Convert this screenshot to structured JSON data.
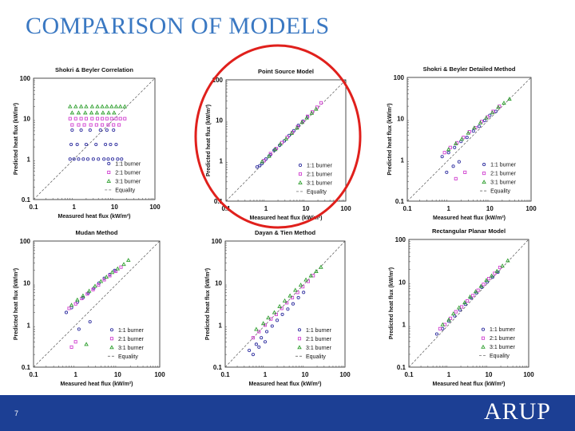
{
  "slide": {
    "title": "COMPARISON OF MODELS",
    "page_number": "7",
    "brand": "ARUP",
    "colors": {
      "title": "#3a78c2",
      "footer": "#1c3f94",
      "highlight_ring": "#e0201c",
      "series_1": "#3030a0",
      "series_2": "#d040d0",
      "series_3": "#30a030"
    }
  },
  "chart_data": [
    {
      "type": "scatter",
      "title": "Shokri & Beyler Correlation",
      "xlabel": "Measured heat flux (kW/m²)",
      "ylabel": "Predicted heat flux (kW/m²)",
      "xlim": [
        0.1,
        100
      ],
      "ylim": [
        0.1,
        100
      ],
      "log_scale": true,
      "x_ticks": [
        "0.1",
        "1",
        "10",
        "100"
      ],
      "y_ticks": [
        "0.1",
        "1",
        "10",
        "100"
      ],
      "highlighted": false,
      "legend": [
        "1:1 burner",
        "2:1 burner",
        "3:1 burner",
        "Equality"
      ],
      "legend_position": "bottom-right",
      "series": [
        {
          "name": "1:1 burner",
          "x": [
            0.8,
            1.0,
            1.3,
            1.7,
            2.2,
            3.0,
            4.0,
            5.5,
            7.0,
            9.0,
            12.0,
            15.0,
            0.9,
            1.5,
            2.5,
            4.5,
            6.5,
            9.5,
            0.85,
            1.2,
            2.0,
            3.5,
            6.0,
            8.0,
            11.0
          ],
          "y": [
            1.0,
            1.0,
            1.0,
            1.0,
            1.0,
            1.0,
            1.0,
            1.0,
            1.0,
            1.0,
            1.0,
            1.0,
            5.2,
            5.2,
            5.2,
            5.2,
            5.2,
            5.2,
            2.3,
            2.3,
            2.3,
            2.3,
            2.3,
            2.3,
            2.3
          ]
        },
        {
          "name": "2:1 burner",
          "x": [
            0.8,
            1.1,
            1.5,
            2.0,
            2.8,
            3.8,
            5.0,
            6.5,
            8.5,
            11.0,
            14.0,
            18.0,
            0.9,
            1.3,
            1.8,
            2.6,
            3.6,
            5.0,
            7.0,
            9.5,
            13.0
          ],
          "y": [
            10.0,
            10.0,
            10.0,
            10.0,
            10.0,
            10.0,
            10.0,
            10.0,
            10.0,
            10.0,
            10.0,
            10.0,
            7.0,
            7.0,
            7.0,
            7.0,
            7.0,
            7.0,
            7.0,
            7.0,
            7.0
          ]
        },
        {
          "name": "3:1 burner",
          "x": [
            0.8,
            1.1,
            1.5,
            2.0,
            2.8,
            3.8,
            5.0,
            6.5,
            8.5,
            11.0,
            14.0,
            18.0,
            0.9,
            1.3,
            1.9,
            2.7,
            3.7,
            5.2,
            7.2,
            9.8
          ],
          "y": [
            20.0,
            20.0,
            20.0,
            20.0,
            20.0,
            20.0,
            20.0,
            20.0,
            20.0,
            20.0,
            20.0,
            20.0,
            14.0,
            14.0,
            14.0,
            14.0,
            14.0,
            14.0,
            14.0,
            14.0
          ]
        }
      ]
    },
    {
      "type": "scatter",
      "title": "Point Source Model",
      "xlabel": "Measured heat flux (kW/m²)",
      "ylabel": "Predicted heat flux (kW/m²)",
      "xlim": [
        0.1,
        100
      ],
      "ylim": [
        0.1,
        100
      ],
      "log_scale": true,
      "x_ticks": [
        "0.1",
        "1",
        "10",
        "100"
      ],
      "y_ticks": [
        "0.1",
        "1",
        "10",
        "100"
      ],
      "highlighted": true,
      "legend": [
        "1:1 burner",
        "2:1 burner",
        "3:1 burner",
        "Equality"
      ],
      "legend_position": "bottom-right",
      "series": [
        {
          "name": "1:1 burner",
          "x": [
            0.6,
            0.8,
            1.0,
            1.3,
            1.7,
            2.2,
            2.9,
            3.8,
            5.0,
            6.5,
            8.5,
            11.0,
            0.7,
            0.9,
            1.2,
            1.6
          ],
          "y": [
            0.7,
            0.85,
            1.1,
            1.4,
            1.9,
            2.4,
            3.1,
            4.2,
            5.5,
            7.5,
            9.5,
            12.0,
            0.75,
            1.0,
            1.3,
            1.8
          ]
        },
        {
          "name": "2:1 burner",
          "x": [
            0.9,
            1.3,
            1.8,
            2.5,
            3.4,
            4.6,
            6.2,
            8.3,
            11.0,
            14.5,
            19.0,
            24.0
          ],
          "y": [
            1.0,
            1.5,
            2.0,
            2.8,
            3.8,
            5.0,
            6.9,
            9.2,
            12.5,
            16.0,
            21.0,
            27.0
          ]
        },
        {
          "name": "3:1 burner",
          "x": [
            0.8,
            1.2,
            1.7,
            2.3,
            3.2,
            4.4,
            6.0,
            8.0,
            10.5,
            14.0,
            18.0
          ],
          "y": [
            0.95,
            1.3,
            1.9,
            2.6,
            3.5,
            4.8,
            6.5,
            8.9,
            11.5,
            15.0,
            19.0
          ]
        }
      ]
    },
    {
      "type": "scatter",
      "title": "Shokri & Beyler Detailed Method",
      "xlabel": "Measured heat flux (kW/m²)",
      "ylabel": "Predicted heat flux (kW/m²)",
      "xlim": [
        0.1,
        100
      ],
      "ylim": [
        0.1,
        100
      ],
      "log_scale": true,
      "x_ticks": [
        "0.1",
        "1",
        "10",
        "100"
      ],
      "y_ticks": [
        "0.1",
        "1",
        "10",
        "100"
      ],
      "highlighted": false,
      "legend": [
        "1:1 burner",
        "2:1 burner",
        "3:1 burner",
        "Equality"
      ],
      "legend_position": "bottom-right",
      "series": [
        {
          "name": "1:1 burner",
          "x": [
            0.7,
            1.0,
            1.4,
            2.0,
            2.8,
            4.0,
            5.5,
            7.5,
            10.0,
            14.0,
            0.9,
            1.3,
            1.8
          ],
          "y": [
            1.2,
            1.5,
            2.0,
            2.8,
            3.5,
            5.0,
            6.5,
            9.0,
            12.0,
            15.0,
            0.5,
            0.7,
            0.9
          ]
        },
        {
          "name": "2:1 burner",
          "x": [
            0.8,
            1.1,
            1.6,
            2.3,
            3.2,
            4.5,
            6.3,
            8.8,
            12.0,
            17.0,
            1.5,
            2.5
          ],
          "y": [
            1.5,
            2.0,
            2.6,
            3.5,
            4.8,
            6.0,
            8.5,
            11.0,
            15.0,
            20.0,
            0.35,
            0.5
          ]
        },
        {
          "name": "3:1 burner",
          "x": [
            1.0,
            1.5,
            2.1,
            3.0,
            4.2,
            5.9,
            8.2,
            11.5,
            16.0,
            22.0,
            30.0
          ],
          "y": [
            1.8,
            2.5,
            3.2,
            4.5,
            6.0,
            8.0,
            10.5,
            14.0,
            19.0,
            24.0,
            30.0
          ]
        }
      ]
    },
    {
      "type": "scatter",
      "title": "Mudan Method",
      "xlabel": "Measured heat flux (kW/m²)",
      "ylabel": "Predicted heat flux (kW/m²)",
      "xlim": [
        0.1,
        100
      ],
      "ylim": [
        0.1,
        100
      ],
      "log_scale": true,
      "x_ticks": [
        "0.1",
        "1",
        "10",
        "100"
      ],
      "y_ticks": [
        "0.1",
        "1",
        "10",
        "100"
      ],
      "highlighted": false,
      "legend": [
        "1:1 burner",
        "2:1 burner",
        "3:1 burner",
        "Equality"
      ],
      "legend_position": "bottom-right",
      "series": [
        {
          "name": "1:1 burner",
          "x": [
            0.6,
            0.8,
            1.1,
            1.5,
            2.0,
            2.7,
            3.6,
            4.8,
            6.5,
            8.5,
            1.2,
            2.2
          ],
          "y": [
            2.0,
            2.6,
            3.5,
            4.5,
            5.8,
            7.5,
            10.0,
            13.0,
            16.0,
            20.0,
            0.8,
            1.2
          ]
        },
        {
          "name": "2:1 burner",
          "x": [
            0.7,
            1.0,
            1.4,
            1.9,
            2.6,
            3.5,
            4.8,
            6.5,
            9.0,
            12.0,
            1.0,
            0.8
          ],
          "y": [
            2.5,
            3.2,
            4.3,
            5.5,
            7.0,
            9.0,
            12.0,
            15.0,
            19.0,
            24.0,
            0.4,
            0.3
          ]
        },
        {
          "name": "3:1 burner",
          "x": [
            0.8,
            1.1,
            1.5,
            2.1,
            2.9,
            4.0,
            5.4,
            7.4,
            10.0,
            14.0,
            18.0,
            1.8
          ],
          "y": [
            3.0,
            4.0,
            5.0,
            6.5,
            8.5,
            11.0,
            14.0,
            18.0,
            22.0,
            28.0,
            35.0,
            0.35
          ]
        }
      ]
    },
    {
      "type": "scatter",
      "title": "Dayan & Tien Method",
      "xlabel": "Measured heat flux (kW/m²)",
      "ylabel": "Predicted heat flux (kW/m²)",
      "xlim": [
        0.1,
        100
      ],
      "ylim": [
        0.1,
        100
      ],
      "log_scale": true,
      "x_ticks": [
        "0.1",
        "1",
        "10",
        "100"
      ],
      "y_ticks": [
        "0.1",
        "1",
        "10",
        "100"
      ],
      "highlighted": false,
      "legend": [
        "1:1 burner",
        "2:1 burner",
        "3:1 burner",
        "Equality"
      ],
      "legend_position": "bottom-right",
      "series": [
        {
          "name": "1:1 burner",
          "x": [
            0.4,
            0.6,
            0.8,
            1.1,
            1.5,
            2.0,
            2.7,
            3.7,
            5.0,
            6.8,
            9.2,
            0.5,
            0.7,
            1.0
          ],
          "y": [
            0.25,
            0.35,
            0.5,
            0.7,
            0.95,
            1.3,
            1.8,
            2.4,
            3.2,
            4.5,
            6.0,
            0.2,
            0.3,
            0.4
          ]
        },
        {
          "name": "2:1 burner",
          "x": [
            0.5,
            0.7,
            1.0,
            1.4,
            1.9,
            2.6,
            3.5,
            4.8,
            6.5,
            8.8,
            12.0,
            16.0
          ],
          "y": [
            0.5,
            0.7,
            1.0,
            1.4,
            1.8,
            2.5,
            3.4,
            4.5,
            6.0,
            8.2,
            11.0,
            15.0
          ]
        },
        {
          "name": "3:1 burner",
          "x": [
            0.6,
            0.9,
            1.2,
            1.7,
            2.3,
            3.1,
            4.2,
            5.7,
            7.8,
            10.5,
            14.0,
            19.0,
            25.0
          ],
          "y": [
            0.8,
            1.1,
            1.5,
            2.0,
            2.8,
            3.8,
            5.0,
            6.8,
            9.0,
            12.0,
            15.0,
            19.0,
            24.0
          ]
        }
      ]
    },
    {
      "type": "scatter",
      "title": "Rectangular Planar Model",
      "xlabel": "Measured heat flux (kW/m²)",
      "ylabel": "Predicted heat flux (kW/m²)",
      "xlim": [
        0.1,
        100
      ],
      "ylim": [
        0.1,
        100
      ],
      "log_scale": true,
      "x_ticks": [
        "0.1",
        "1",
        "10",
        "100"
      ],
      "y_ticks": [
        "0.1",
        "1",
        "10",
        "100"
      ],
      "highlighted": false,
      "legend": [
        "1:1 burner",
        "2:1 burner",
        "3:1 burner",
        "Equality"
      ],
      "legend_position": "bottom-right",
      "series": [
        {
          "name": "1:1 burner",
          "x": [
            0.5,
            0.7,
            1.0,
            1.4,
            1.9,
            2.6,
            3.6,
            4.9,
            6.7,
            9.1,
            12.5,
            17.0
          ],
          "y": [
            0.6,
            0.8,
            1.2,
            1.6,
            2.2,
            3.0,
            4.2,
            5.5,
            7.5,
            10.0,
            13.0,
            17.0
          ]
        },
        {
          "name": "2:1 burner",
          "x": [
            0.6,
            0.8,
            1.1,
            1.5,
            2.1,
            2.9,
            4.0,
            5.4,
            7.4,
            10.0,
            14.0,
            19.0
          ],
          "y": [
            0.8,
            1.0,
            1.4,
            2.0,
            2.6,
            3.6,
            4.8,
            6.4,
            8.8,
            12.0,
            16.0,
            22.0
          ]
        },
        {
          "name": "3:1 burner",
          "x": [
            0.7,
            1.0,
            1.3,
            1.8,
            2.5,
            3.4,
            4.7,
            6.4,
            8.7,
            11.8,
            16.0,
            22.0,
            30.0
          ],
          "y": [
            1.0,
            1.3,
            1.8,
            2.5,
            3.3,
            4.5,
            6.0,
            8.0,
            11.0,
            14.0,
            18.0,
            24.0,
            32.0
          ]
        }
      ]
    }
  ]
}
